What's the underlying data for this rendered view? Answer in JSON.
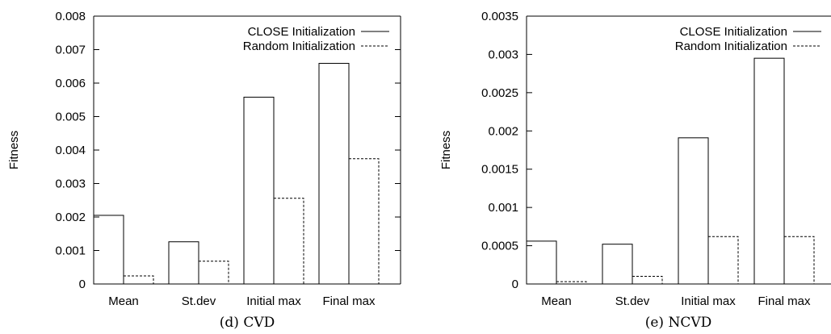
{
  "chart_data": [
    {
      "type": "bar",
      "caption": "(d) CVD",
      "ylabel": "Fitness",
      "ylim": [
        0,
        0.008
      ],
      "yticks": [
        "0",
        "0.001",
        "0.002",
        "0.003",
        "0.004",
        "0.005",
        "0.006",
        "0.007",
        "0.008"
      ],
      "categories": [
        "Mean",
        "St.dev",
        "Initial max",
        "Final max"
      ],
      "legend_position": "top-right",
      "series": [
        {
          "name": "CLOSE Initialization",
          "style": "solid",
          "values": [
            0.00205,
            0.00126,
            0.00558,
            0.00659
          ]
        },
        {
          "name": "Random Initialization",
          "style": "dashed",
          "values": [
            0.00024,
            0.00068,
            0.00256,
            0.00374
          ]
        }
      ]
    },
    {
      "type": "bar",
      "caption": "(e) NCVD",
      "ylabel": "Fitness",
      "ylim": [
        0,
        0.0035
      ],
      "yticks": [
        "0",
        "0.0005",
        "0.001",
        "0.0015",
        "0.002",
        "0.0025",
        "0.003",
        "0.0035"
      ],
      "categories": [
        "Mean",
        "St.dev",
        "Initial max",
        "Final max"
      ],
      "legend_position": "top-right",
      "series": [
        {
          "name": "CLOSE Initialization",
          "style": "solid",
          "values": [
            0.00056,
            0.00052,
            0.00191,
            0.00295
          ]
        },
        {
          "name": "Random Initialization",
          "style": "dashed",
          "values": [
            3e-05,
            0.0001,
            0.00062,
            0.00062
          ]
        }
      ]
    }
  ]
}
